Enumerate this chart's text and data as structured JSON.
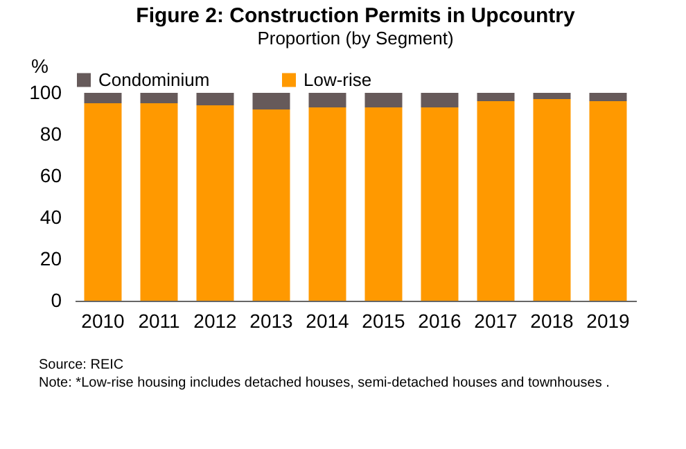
{
  "chart_data": {
    "type": "bar",
    "title": "Figure 2: Construction Permits in Upcountry",
    "subtitle": "Proportion (by Segment)",
    "ylabel": "%",
    "categories": [
      "2010",
      "2011",
      "2012",
      "2013",
      "2014",
      "2015",
      "2016",
      "2017",
      "2018",
      "2019"
    ],
    "stacked": true,
    "series": [
      {
        "name": "Low-rise",
        "color": "#ff9900",
        "values": [
          95,
          95,
          94,
          92,
          93,
          93,
          93,
          96,
          97,
          96
        ]
      },
      {
        "name": "Condominium",
        "color": "#665a5a",
        "values": [
          5,
          5,
          6,
          8,
          7,
          7,
          7,
          4,
          3,
          4
        ]
      }
    ],
    "ylim": [
      0,
      100
    ],
    "yticks": [
      0,
      20,
      40,
      60,
      80,
      100
    ],
    "grid": false,
    "legend": "top",
    "annotations": [
      "Source: REIC",
      "Note: *Low-rise housing  includes detached houses, semi-detached houses and townhouses ."
    ]
  }
}
